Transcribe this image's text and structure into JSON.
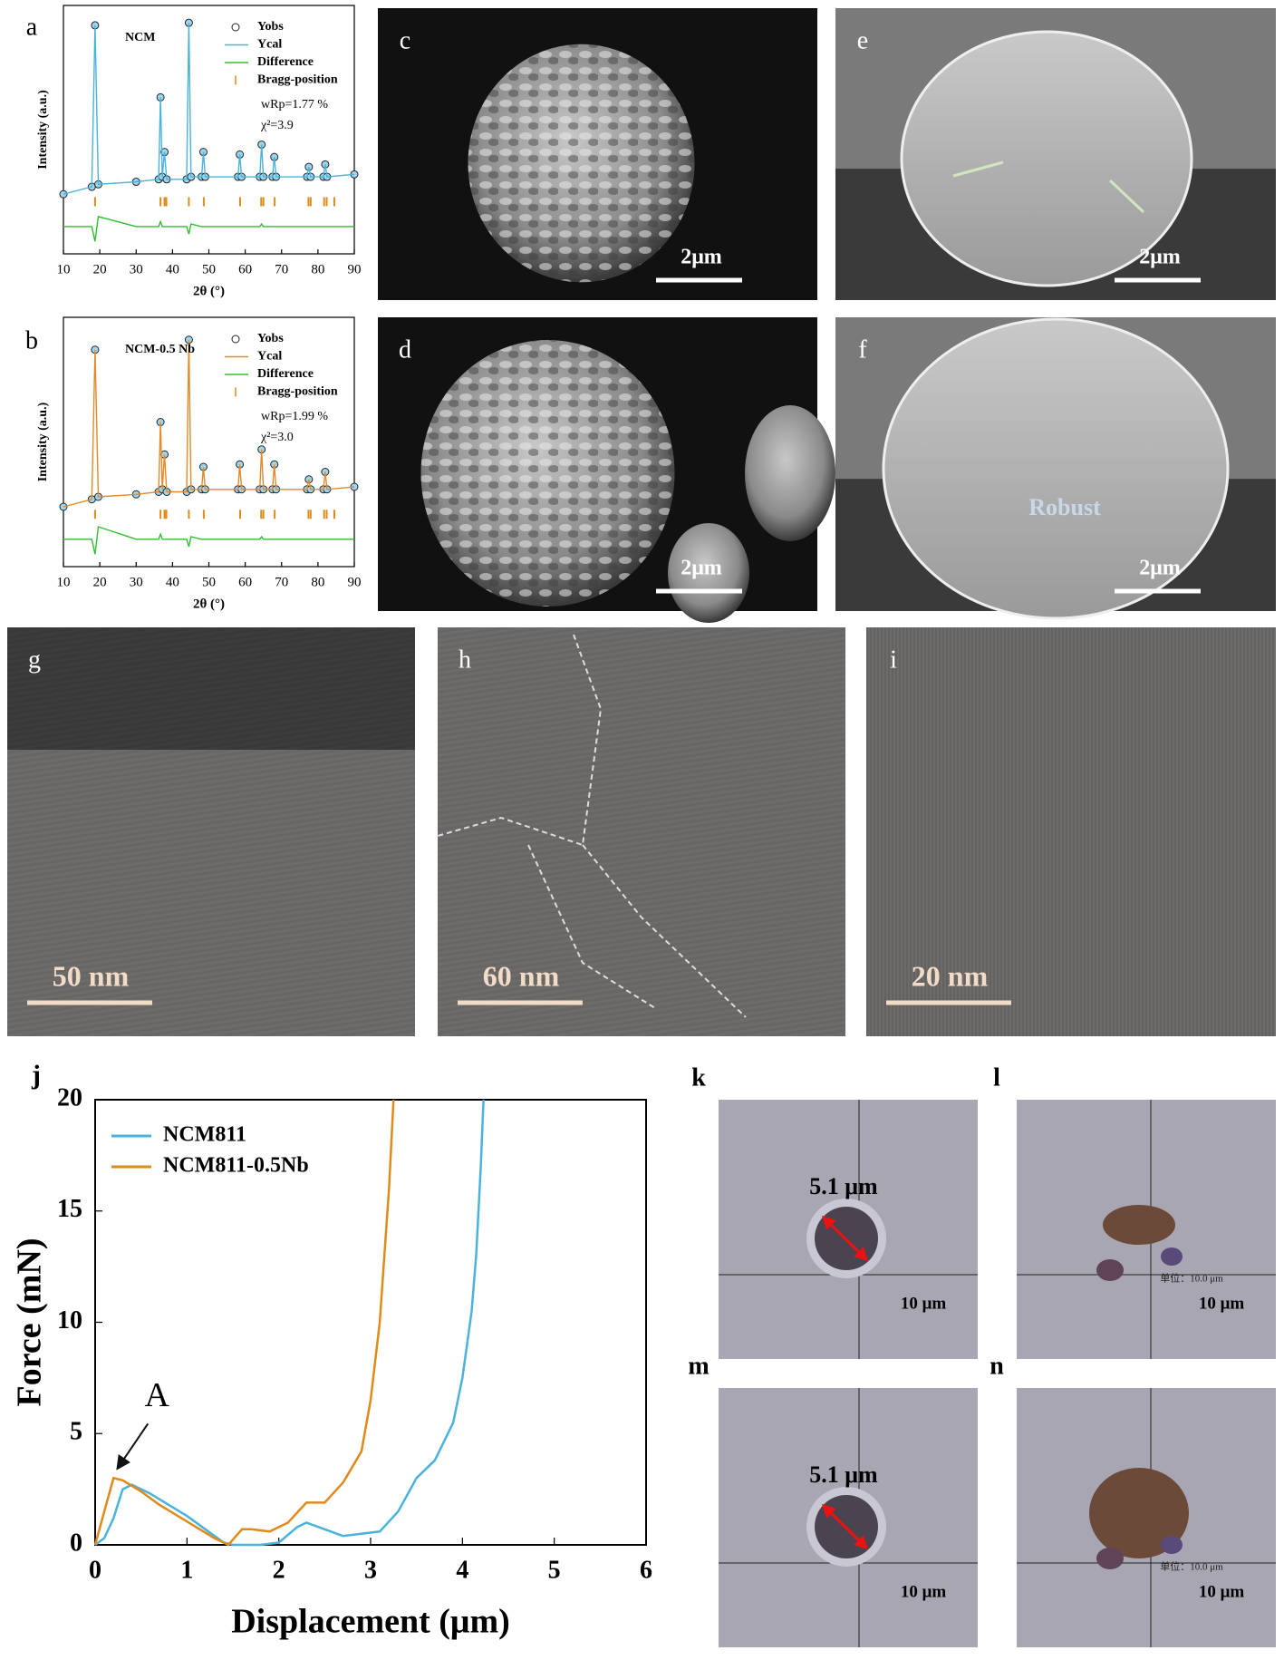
{
  "chart_data": [
    {
      "type": "line",
      "label": "a",
      "sample": "NCM",
      "notes": [
        "wRp=1.77 %",
        "χ²=3.9"
      ],
      "xlabel": "2θ (°)",
      "ylabel": "Intensity (a.u.)",
      "xlim": [
        10,
        90
      ],
      "xticks": [
        10,
        20,
        30,
        40,
        50,
        60,
        70,
        80,
        90
      ],
      "ylim": [
        0,
        100
      ],
      "x": [
        10,
        17.8,
        18.7,
        19.6,
        30,
        36.2,
        36.7,
        37.2,
        37.8,
        38.4,
        43.9,
        44.5,
        45.1,
        48,
        48.5,
        49,
        58,
        58.5,
        59,
        64,
        64.5,
        65,
        67.5,
        68,
        68.5,
        77,
        77.5,
        78,
        81.5,
        82,
        82.5,
        90
      ],
      "series": [
        {
          "name": "Yobs",
          "color": "#222222",
          "marker": "circle",
          "values": [
            24,
            27,
            92,
            28,
            29,
            30,
            63,
            31,
            41,
            30,
            30,
            93,
            31,
            31,
            41,
            31,
            31,
            40,
            31,
            31,
            44,
            31,
            31,
            39,
            31,
            31,
            35,
            31,
            31,
            36,
            31,
            32
          ]
        },
        {
          "name": "Ycal",
          "color": "#4ab3dc",
          "values": [
            24,
            27,
            92,
            28,
            29,
            30,
            63,
            31,
            41,
            30,
            30,
            93,
            31,
            31,
            41,
            31,
            31,
            40,
            31,
            31,
            44,
            31,
            31,
            39,
            31,
            31,
            35,
            31,
            31,
            36,
            31,
            32
          ]
        },
        {
          "name": "Difference",
          "color": "#2fbf2f",
          "values": [
            11,
            11,
            5,
            15,
            11,
            11,
            13,
            11,
            11,
            11,
            11,
            8,
            12,
            11,
            11,
            11,
            11,
            11,
            11,
            11,
            12,
            11,
            11,
            11,
            11,
            11,
            11,
            11,
            11,
            11,
            11,
            11
          ]
        }
      ],
      "bragg": {
        "name": "Bragg-position",
        "color": "#e08a1a",
        "x": [
          18.7,
          36.7,
          37.8,
          38.3,
          44.5,
          48.6,
          58.6,
          64.4,
          65.0,
          68.1,
          77.4,
          78.0,
          81.7,
          82.4,
          84.5
        ]
      }
    },
    {
      "type": "line",
      "label": "b",
      "sample": "NCM-0.5 Nb",
      "notes": [
        "wRp=1.99 %",
        "χ²=3.0"
      ],
      "xlabel": "2θ (°)",
      "ylabel": "Intensity (a.u.)",
      "xlim": [
        10,
        90
      ],
      "xticks": [
        10,
        20,
        30,
        40,
        50,
        60,
        70,
        80,
        90
      ],
      "ylim": [
        0,
        100
      ],
      "x": [
        10,
        17.8,
        18.7,
        19.6,
        30,
        36.2,
        36.7,
        37.2,
        37.8,
        38.4,
        43.9,
        44.5,
        45.1,
        48,
        48.5,
        49,
        58,
        58.5,
        59,
        64,
        64.5,
        65,
        67.5,
        68,
        68.5,
        77,
        77.5,
        78,
        81.5,
        82,
        82.5,
        90
      ],
      "series": [
        {
          "name": "Yobs",
          "color": "#222222",
          "marker": "circle",
          "values": [
            24,
            27,
            87,
            28,
            29,
            30,
            58,
            31,
            45,
            30,
            30,
            91,
            31,
            31,
            40,
            31,
            31,
            41,
            31,
            31,
            47,
            31,
            31,
            41,
            31,
            31,
            35,
            31,
            31,
            38,
            31,
            32
          ]
        },
        {
          "name": "Ycal",
          "color": "#e3892b",
          "values": [
            24,
            27,
            87,
            28,
            29,
            30,
            58,
            31,
            45,
            30,
            30,
            91,
            31,
            31,
            40,
            31,
            31,
            41,
            31,
            31,
            47,
            31,
            31,
            41,
            31,
            31,
            35,
            31,
            31,
            38,
            31,
            32
          ]
        },
        {
          "name": "Difference",
          "color": "#2fbf2f",
          "values": [
            11,
            11,
            5,
            16,
            11,
            11,
            13,
            11,
            11,
            11,
            11,
            8,
            12,
            11,
            11,
            11,
            11,
            11,
            11,
            11,
            12,
            11,
            11,
            11,
            11,
            11,
            11,
            11,
            11,
            11,
            11,
            11
          ]
        }
      ],
      "bragg": {
        "name": "Bragg-position",
        "color": "#e08a1a",
        "x": [
          18.7,
          36.7,
          37.8,
          38.3,
          44.5,
          48.6,
          58.6,
          64.4,
          65.0,
          68.1,
          77.4,
          78.0,
          81.7,
          82.4,
          84.5
        ]
      }
    },
    {
      "type": "line",
      "label": "j",
      "annotation": "A",
      "xlabel": "Displacement (μm)",
      "ylabel": "Force (mN)",
      "xlim": [
        0,
        6
      ],
      "xticks": [
        0,
        1,
        2,
        3,
        4,
        5,
        6
      ],
      "ylim": [
        0,
        20
      ],
      "yticks": [
        0,
        5,
        10,
        15,
        20
      ],
      "series": [
        {
          "name": "NCM811",
          "color": "#4ab3dc",
          "x": [
            0,
            0.1,
            0.2,
            0.3,
            0.4,
            0.6,
            0.8,
            1.0,
            1.2,
            1.4,
            1.5,
            1.8,
            2.0,
            2.2,
            2.3,
            2.5,
            2.7,
            2.9,
            3.1,
            3.3,
            3.5,
            3.7,
            3.9,
            4.0,
            4.1,
            4.15,
            4.2,
            4.23
          ],
          "values": [
            0,
            0.3,
            1.2,
            2.5,
            2.7,
            2.3,
            1.8,
            1.3,
            0.7,
            0.1,
            0,
            0,
            0.1,
            0.8,
            1.0,
            0.7,
            0.4,
            0.5,
            0.6,
            1.5,
            3.0,
            3.8,
            5.5,
            7.5,
            10.5,
            13,
            17,
            20
          ]
        },
        {
          "name": "NCM811-0.5Nb",
          "color": "#e08a1a",
          "x": [
            0,
            0.1,
            0.2,
            0.3,
            0.5,
            0.7,
            0.9,
            1.1,
            1.3,
            1.45,
            1.6,
            1.7,
            1.9,
            2.1,
            2.3,
            2.5,
            2.7,
            2.9,
            3.0,
            3.1,
            3.15,
            3.2,
            3.25
          ],
          "values": [
            0,
            1.5,
            3.0,
            2.9,
            2.4,
            1.8,
            1.3,
            0.8,
            0.3,
            0,
            0.7,
            0.7,
            0.6,
            1.0,
            1.9,
            1.9,
            2.8,
            4.2,
            6.5,
            10,
            13,
            16,
            20
          ]
        }
      ]
    }
  ],
  "images": [
    {
      "label": "c",
      "scale_bar": "2μm"
    },
    {
      "label": "d",
      "scale_bar": "2μm"
    },
    {
      "label": "e",
      "scale_bar": "2μm"
    },
    {
      "label": "f",
      "scale_bar": "2μm",
      "annotation": "Robust"
    },
    {
      "label": "g",
      "scale_bar": "50 nm"
    },
    {
      "label": "h",
      "scale_bar": "60 nm"
    },
    {
      "label": "i",
      "scale_bar": "20 nm"
    },
    {
      "label": "k",
      "measurement": "5.1 μm",
      "scale_bar": "10 μm"
    },
    {
      "label": "l",
      "unit_note": "单位：10.0 μm",
      "scale_bar": "10 μm"
    },
    {
      "label": "m",
      "measurement": "5.1 μm",
      "scale_bar": "10 μm"
    },
    {
      "label": "n",
      "unit_note": "单位：10.0 μm",
      "scale_bar": "10 μm"
    }
  ]
}
